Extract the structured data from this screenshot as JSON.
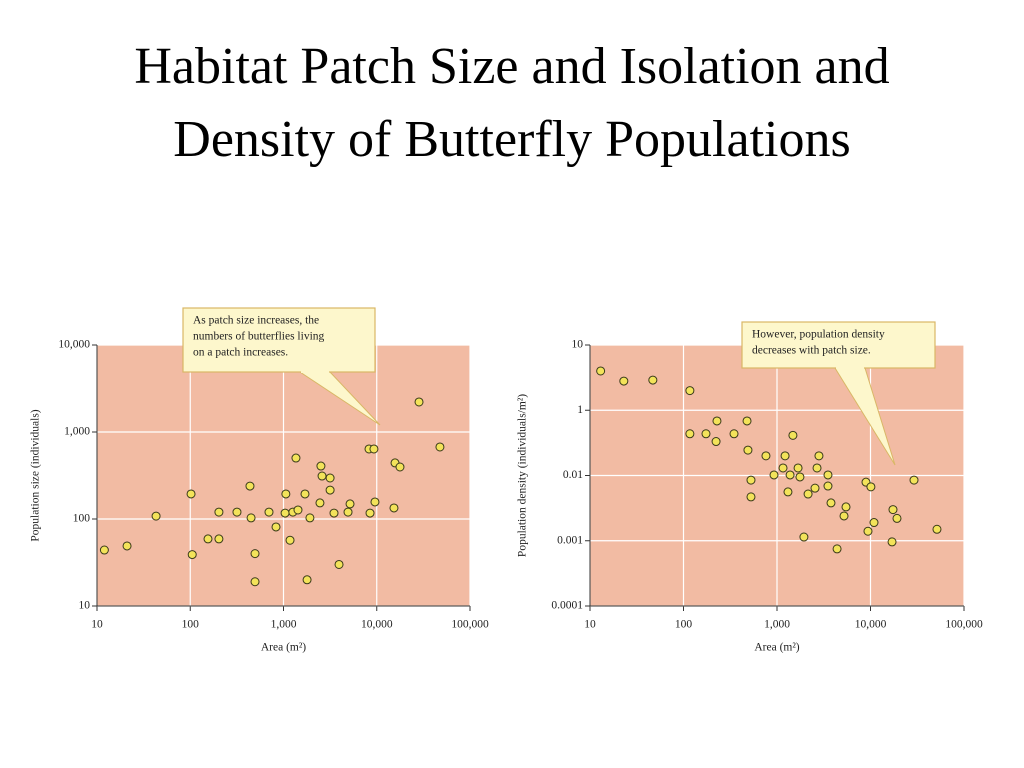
{
  "title": "Habitat Patch Size and Isolation and Density of Butterfly Populations",
  "chart_data": [
    {
      "type": "scatter",
      "x_label": "Area (m²)",
      "y_label": "Population size (individuals)",
      "annotation": [
        "As patch size increases, the",
        "numbers of butterflies living",
        "on a patch increases."
      ],
      "log_x": true,
      "log_y": true,
      "grid": true,
      "color": "#f3e35a",
      "background": "#f2bba3",
      "xlim": [
        10,
        100000
      ],
      "ylim": [
        10,
        10000
      ],
      "xticks": [
        10,
        100,
        {
          "value": 1000,
          "label": "1,000"
        },
        {
          "value": 10000,
          "label": "10,000"
        },
        {
          "value": 100000,
          "label": "100,000"
        }
      ],
      "yticks": [
        10,
        100,
        {
          "value": 1000,
          "label": "1,000"
        },
        {
          "value": 10000,
          "label": "10,000"
        }
      ],
      "x": [
        12,
        21,
        43,
        102,
        105,
        155,
        203,
        203,
        317,
        437,
        449,
        495,
        495,
        699,
        831,
        1060,
        1040,
        1175,
        1260,
        1430,
        1360,
        1700,
        1790,
        1920,
        2460,
        2520,
        2590,
        3160,
        3160,
        3480,
        3940,
        4920,
        5170,
        8260,
        9330,
        8470,
        9570,
        15700,
        17750,
        15300,
        28400,
        47600
      ],
      "y": [
        44,
        49,
        108,
        194,
        39,
        59,
        59,
        120,
        120,
        239,
        103,
        40,
        19,
        120,
        81,
        194,
        117,
        57,
        120,
        127,
        502,
        194,
        20,
        103,
        153,
        406,
        312,
        215,
        296,
        117,
        30,
        120,
        149,
        638,
        638,
        117,
        157,
        441,
        396,
        134,
        2213,
        673
      ]
    },
    {
      "type": "scatter",
      "x_label": "Area (m²)",
      "y_label": "Population density (individuals/m²)",
      "annotation": [
        "However, population density",
        "decreases with patch size."
      ],
      "log_x": true,
      "log_y": true,
      "grid": true,
      "color": "#f3e35a",
      "background": "#f2bba3",
      "xlim": [
        10,
        100000
      ],
      "ylim": [
        0.0001,
        10
      ],
      "xticks": [
        10,
        100,
        {
          "value": 1000,
          "label": "1,000"
        },
        {
          "value": 10000,
          "label": "10,000"
        },
        {
          "value": 100000,
          "label": "100,000"
        }
      ],
      "yticks": [
        0.0001,
        0.001,
        0.01,
        1,
        10
      ],
      "x": [
        13,
        23,
        47,
        117,
        117,
        174,
        228,
        223,
        347,
        478,
        489,
        762,
        527,
        527,
        929,
        1220,
        1310,
        1160,
        1380,
        1480,
        1680,
        1760,
        2150,
        1940,
        2550,
        2680,
        2810,
        3510,
        3510,
        3780,
        4390,
        5210,
        5470,
        8950,
        9400,
        10100,
        10900,
        17000,
        17400,
        19200,
        29200,
        51400
      ],
      "y": [
        4.0,
        2.8,
        2.9,
        2.0,
        0.19,
        0.19,
        0.47,
        0.11,
        0.19,
        0.47,
        0.06,
        0.04,
        0.0085,
        0.0047,
        0.0104,
        0.04,
        0.0056,
        0.017,
        0.0104,
        0.17,
        0.017,
        0.0095,
        0.0052,
        0.00114,
        0.0064,
        0.017,
        0.04,
        0.0104,
        0.0069,
        0.0038,
        0.00075,
        0.0024,
        0.0033,
        0.0079,
        0.0014,
        0.0067,
        0.0019,
        0.00096,
        0.003,
        0.0022,
        0.0085,
        0.0015
      ]
    }
  ]
}
